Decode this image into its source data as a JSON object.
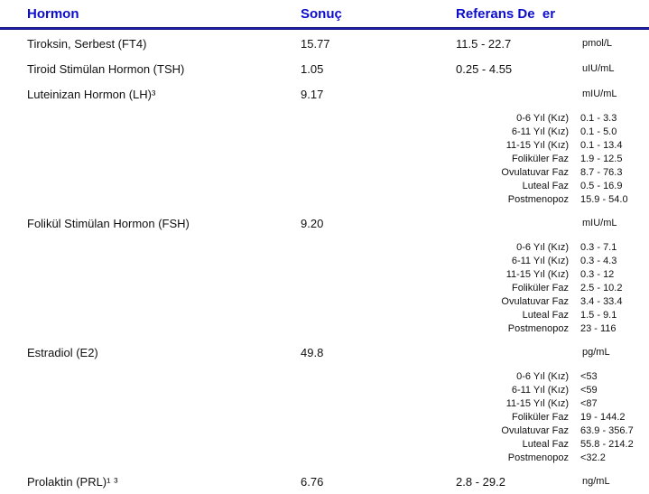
{
  "header": {
    "hormone_col": "Hormon",
    "result_col": "Sonuç",
    "reference_col": "Referans De  er"
  },
  "colors": {
    "header_text": "#0d0dcc",
    "header_rule": "#1a1a9e",
    "body_text": "#111111",
    "page_bg": "#ffffff"
  },
  "rows": [
    {
      "name": "Tiroksin, Serbest (FT4)",
      "result": "15.77",
      "range": "11.5 - 22.7",
      "unit": "pmol/L",
      "subs": []
    },
    {
      "name": "Tiroid Stimülan Hormon (TSH)",
      "result": "1.05",
      "range": "0.25 - 4.55",
      "unit": "uIU/mL",
      "subs": []
    },
    {
      "name": "Luteinizan Hormon (LH)³",
      "result": "9.17",
      "range": "",
      "unit": "mIU/mL",
      "subs": [
        {
          "label": "0-6 Yıl (Kız)",
          "value": "0.1 - 3.3"
        },
        {
          "label": "6-11 Yıl (Kız)",
          "value": "0.1 - 5.0"
        },
        {
          "label": "11-15 Yıl (Kız)",
          "value": "0.1 - 13.4"
        },
        {
          "label": "Foliküler Faz",
          "value": "1.9 - 12.5"
        },
        {
          "label": "Ovulatuvar Faz",
          "value": "8.7 - 76.3"
        },
        {
          "label": "Luteal Faz",
          "value": "0.5 - 16.9"
        },
        {
          "label": "Postmenopoz",
          "value": "15.9 - 54.0"
        }
      ]
    },
    {
      "name": "Folikül Stimülan Hormon (FSH)",
      "result": "9.20",
      "range": "",
      "unit": "mIU/mL",
      "subs": [
        {
          "label": "0-6 Yıl (Kız)",
          "value": "0.3 - 7.1"
        },
        {
          "label": "6-11 Yıl (Kız)",
          "value": "0.3 - 4.3"
        },
        {
          "label": "11-15 Yıl (Kız)",
          "value": "0.3 - 12"
        },
        {
          "label": "Foliküler Faz",
          "value": "2.5 - 10.2"
        },
        {
          "label": "Ovulatuvar Faz",
          "value": "3.4 - 33.4"
        },
        {
          "label": "Luteal Faz",
          "value": "1.5 - 9.1"
        },
        {
          "label": "Postmenopoz",
          "value": "23 - 116"
        }
      ]
    },
    {
      "name": "Estradiol (E2)",
      "result": "49.8",
      "range": "",
      "unit": "pg/mL",
      "subs": [
        {
          "label": "0-6 Yıl (Kız)",
          "value": "<53"
        },
        {
          "label": "6-11 Yıl (Kız)",
          "value": "<59"
        },
        {
          "label": "11-15 Yıl (Kız)",
          "value": "<87"
        },
        {
          "label": "Foliküler Faz",
          "value": "19 - 144.2"
        },
        {
          "label": "Ovulatuvar Faz",
          "value": "63.9 - 356.7"
        },
        {
          "label": "Luteal Faz",
          "value": "55.8 - 214.2"
        },
        {
          "label": "Postmenopoz",
          "value": "<32.2"
        }
      ]
    },
    {
      "name": "Prolaktin (PRL)¹ ³",
      "result": "6.76",
      "range": "2.8 - 29.2",
      "unit": "ng/mL",
      "subs": []
    }
  ]
}
